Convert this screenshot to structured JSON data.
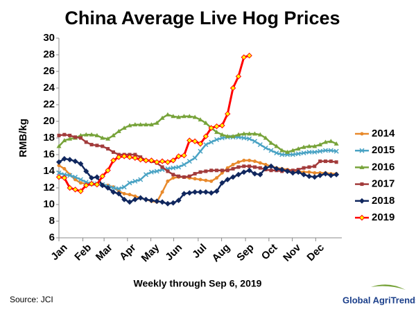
{
  "chart_data": {
    "type": "line",
    "title": "China Average Live Hog Prices",
    "ylabel": "RMB/kg",
    "xlabel": "Weekly through Sep 6, 2019",
    "source": "Source:  JCI",
    "logo": "Global AgriTrends",
    "x": [
      1,
      2,
      3,
      4,
      5,
      6,
      7,
      8,
      9,
      10,
      11,
      12,
      13,
      14,
      15,
      16,
      17,
      18,
      19,
      20,
      21,
      22,
      23,
      24,
      25,
      26,
      27,
      28,
      29,
      30,
      31,
      32,
      33,
      34,
      35,
      36,
      37,
      38,
      39,
      40,
      41,
      42,
      43,
      44,
      45,
      46,
      47,
      48,
      49,
      50,
      51,
      52
    ],
    "xlim": [
      1,
      53
    ],
    "xticks": [
      {
        "value": 1,
        "label": "Jan"
      },
      {
        "value": 5.4,
        "label": "Feb"
      },
      {
        "value": 9.3,
        "label": "Mar"
      },
      {
        "value": 13.6,
        "label": "Apr"
      },
      {
        "value": 17.9,
        "label": "May"
      },
      {
        "value": 22.1,
        "label": "Jun"
      },
      {
        "value": 26.6,
        "label": "Jul"
      },
      {
        "value": 30.9,
        "label": "Aug"
      },
      {
        "value": 35.3,
        "label": "Sep"
      },
      {
        "value": 39.6,
        "label": "Oct"
      },
      {
        "value": 43.9,
        "label": "Nov"
      },
      {
        "value": 48.2,
        "label": "Dec"
      }
    ],
    "ylim": [
      6,
      30
    ],
    "yticks": [
      6,
      8,
      10,
      12,
      14,
      16,
      18,
      20,
      22,
      24,
      26,
      28,
      30
    ],
    "grid": false,
    "legend": "right",
    "series": [
      {
        "name": "2014",
        "color": "#e8892b",
        "marker": "circle",
        "values": [
          14.7,
          14.3,
          13.6,
          13.0,
          12.6,
          12.5,
          12.4,
          12.4,
          12.4,
          12.3,
          12.1,
          11.6,
          11.3,
          11.2,
          11.0,
          10.8,
          10.6,
          10.4,
          10.3,
          11.5,
          12.8,
          13.2,
          13.3,
          13.3,
          13.2,
          13.1,
          13.0,
          12.9,
          12.8,
          13.2,
          13.8,
          14.4,
          14.8,
          15.1,
          15.3,
          15.3,
          15.2,
          15.0,
          14.8,
          14.6,
          14.4,
          14.3,
          14.2,
          14.1,
          14.0,
          13.9,
          13.9,
          13.8,
          13.8,
          13.8,
          13.7,
          13.7
        ]
      },
      {
        "name": "2015",
        "color": "#4aa3c4",
        "marker": "cross",
        "values": [
          13.8,
          13.6,
          13.5,
          13.3,
          13.0,
          12.7,
          12.5,
          12.5,
          12.4,
          12.2,
          12.0,
          11.9,
          12.1,
          12.6,
          12.8,
          13.0,
          13.6,
          13.9,
          14.0,
          14.2,
          14.3,
          14.4,
          14.5,
          14.8,
          15.2,
          15.6,
          16.4,
          17.2,
          17.5,
          17.8,
          18.0,
          18.1,
          18.1,
          18.1,
          18.0,
          17.9,
          17.6,
          17.2,
          16.8,
          16.5,
          16.2,
          16.0,
          16.0,
          16.0,
          16.1,
          16.2,
          16.3,
          16.3,
          16.4,
          16.5,
          16.5,
          16.4
        ]
      },
      {
        "name": "2016",
        "color": "#77a33a",
        "marker": "triangle",
        "values": [
          17.0,
          17.7,
          17.9,
          18.0,
          18.3,
          18.4,
          18.4,
          18.3,
          18.0,
          17.9,
          18.3,
          18.8,
          19.2,
          19.5,
          19.6,
          19.6,
          19.6,
          19.6,
          19.8,
          20.4,
          20.8,
          20.6,
          20.5,
          20.6,
          20.6,
          20.5,
          20.2,
          19.8,
          19.2,
          18.7,
          18.4,
          18.2,
          18.2,
          18.4,
          18.5,
          18.5,
          18.5,
          18.4,
          18.0,
          17.4,
          17.0,
          16.5,
          16.3,
          16.5,
          16.7,
          16.9,
          17.0,
          17.0,
          17.2,
          17.5,
          17.6,
          17.3
        ]
      },
      {
        "name": "2017",
        "color": "#a23b3b",
        "marker": "square",
        "values": [
          18.3,
          18.4,
          18.3,
          18.1,
          18.0,
          17.5,
          17.2,
          17.1,
          17.0,
          16.7,
          16.3,
          16.0,
          16.0,
          16.0,
          16.0,
          15.7,
          15.3,
          15.2,
          15.0,
          14.5,
          14.0,
          13.6,
          13.4,
          13.3,
          13.4,
          13.7,
          13.9,
          14.0,
          14.1,
          14.1,
          14.1,
          14.1,
          14.3,
          14.5,
          14.6,
          14.6,
          14.5,
          14.4,
          14.2,
          14.1,
          14.1,
          14.0,
          14.1,
          14.1,
          14.2,
          14.4,
          14.5,
          14.6,
          15.2,
          15.2,
          15.2,
          15.1
        ]
      },
      {
        "name": "2018",
        "color": "#10275e",
        "marker": "diamond",
        "values": [
          15.1,
          15.5,
          15.4,
          15.2,
          14.9,
          14.0,
          13.2,
          13.3,
          12.3,
          12.0,
          11.5,
          11.3,
          10.6,
          10.3,
          10.6,
          10.8,
          10.6,
          10.5,
          10.4,
          10.3,
          10.1,
          10.2,
          10.5,
          11.3,
          11.4,
          11.5,
          11.5,
          11.5,
          11.4,
          11.6,
          12.6,
          13.0,
          13.3,
          13.6,
          13.9,
          14.1,
          13.7,
          13.6,
          14.4,
          14.6,
          14.3,
          14.2,
          14.0,
          13.8,
          13.9,
          13.6,
          13.4,
          13.3,
          13.5,
          13.7,
          13.5,
          13.6
        ]
      },
      {
        "name": "2019",
        "color": "#ff0000",
        "marker": "diamond-yellow",
        "values": [
          13.3,
          13.2,
          12.0,
          11.8,
          11.6,
          12.3,
          12.5,
          12.4,
          13.4,
          14.1,
          15.3,
          15.7,
          15.8,
          15.7,
          15.6,
          15.4,
          15.3,
          15.3,
          15.1,
          15.2,
          15.1,
          15.3,
          15.8,
          15.9,
          17.7,
          17.6,
          17.3,
          18.2,
          19.2,
          19.4,
          19.5,
          20.9,
          24.0,
          25.4,
          27.7,
          27.9,
          null,
          null,
          null,
          null,
          null,
          null,
          null,
          null,
          null,
          null,
          null,
          null,
          null,
          null,
          null,
          null
        ]
      }
    ]
  }
}
